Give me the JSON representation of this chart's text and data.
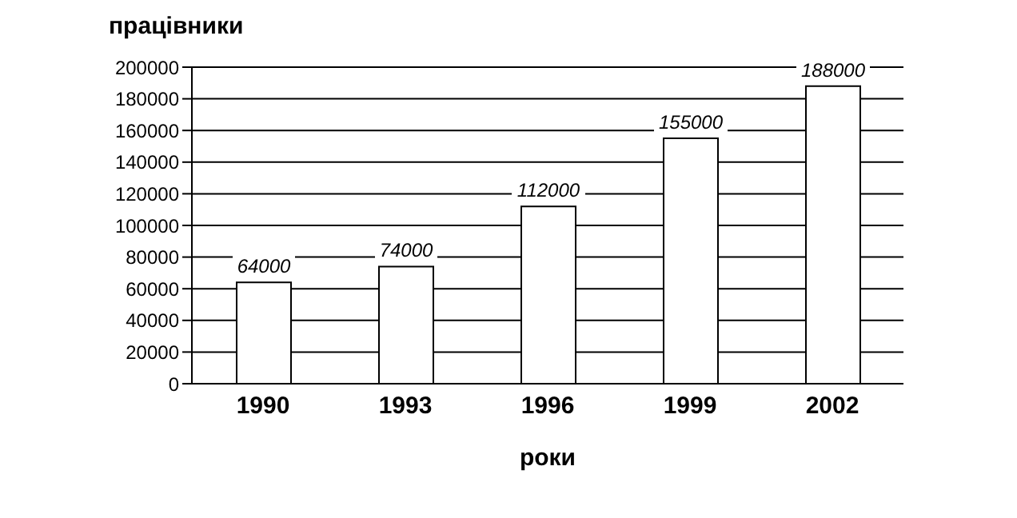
{
  "chart_data": {
    "type": "bar",
    "ylabel": "працівники",
    "xlabel": "роки",
    "categories": [
      "1990",
      "1993",
      "1996",
      "1999",
      "2002"
    ],
    "values": [
      64000,
      74000,
      112000,
      155000,
      188000
    ],
    "color": "#ffffff",
    "ylim": [
      0,
      200000
    ],
    "yticks": [
      0,
      20000,
      40000,
      60000,
      80000,
      100000,
      120000,
      140000,
      160000,
      180000,
      200000
    ],
    "grid": "y",
    "data_labels": true
  }
}
